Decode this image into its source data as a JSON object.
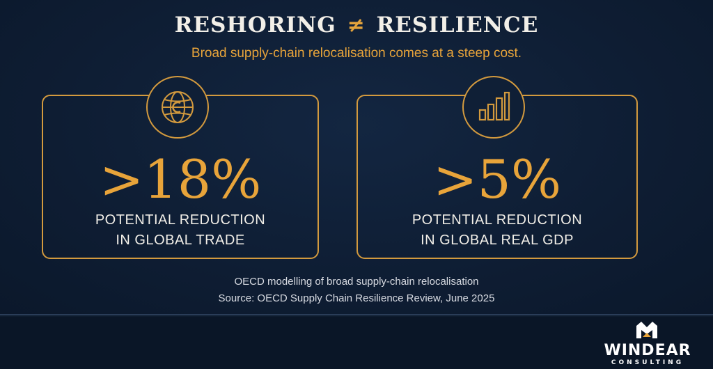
{
  "header": {
    "title_left": "RESHORING",
    "title_symbol": "≠",
    "title_right": "RESILIENCE",
    "subtitle": "Broad supply-chain relocalisation comes at a steep cost."
  },
  "cards": [
    {
      "icon": "globe-icon",
      "stat": ">18%",
      "label_line1": "POTENTIAL REDUCTION",
      "label_line2": "IN GLOBAL TRADE"
    },
    {
      "icon": "bar-chart-icon",
      "stat": ">5%",
      "label_line1": "POTENTIAL REDUCTION",
      "label_line2": "IN GLOBAL REAL GDP"
    }
  ],
  "notes": {
    "line1": "OECD modelling of broad supply-chain relocalisation",
    "line2": "Source: OECD Supply Chain Resilience Review, June 2025"
  },
  "logo": {
    "name": "WINDEAR",
    "sub": "CONSULTING"
  },
  "colors": {
    "background": "#0e1d33",
    "accent": "#e8a43a",
    "text": "#f2efe8"
  }
}
